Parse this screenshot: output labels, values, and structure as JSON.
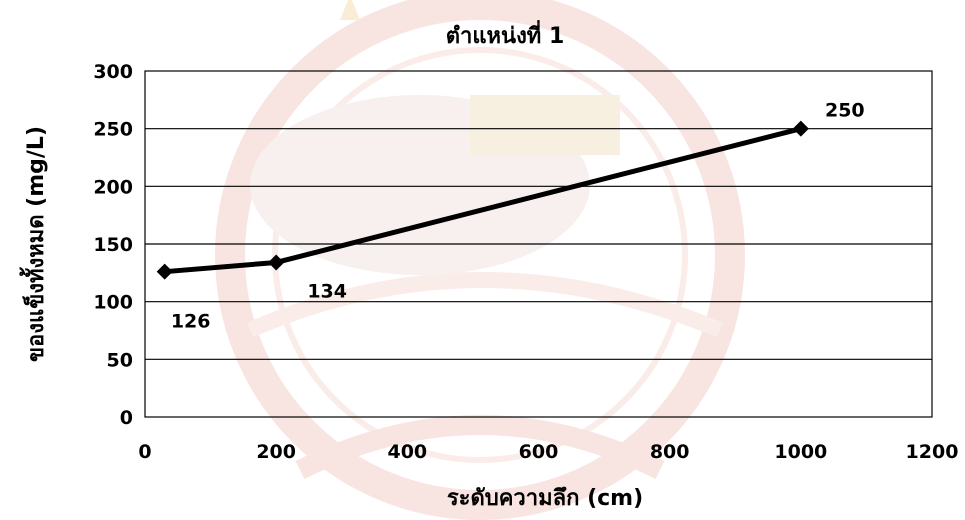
{
  "chart_data": {
    "type": "line",
    "title": "ตำแหน่งที่ 1",
    "xlabel": "ระดับความลึก (cm)",
    "ylabel": "ของแข็งทั้งหมด (mg/L)",
    "xlim": [
      0,
      1200
    ],
    "ylim": [
      0,
      300
    ],
    "xticks": [
      0,
      200,
      400,
      600,
      800,
      1000,
      1200
    ],
    "yticks": [
      0,
      50,
      100,
      150,
      200,
      250,
      300
    ],
    "grid": "horizontal",
    "legend": "none",
    "series": [
      {
        "color": "#000000",
        "marker": "diamond",
        "points": [
          {
            "x": 30,
            "y": 126,
            "label": "126"
          },
          {
            "x": 200,
            "y": 134,
            "label": "134"
          },
          {
            "x": 1000,
            "y": 250,
            "label": "250"
          }
        ]
      }
    ]
  },
  "colors": {
    "watermark": "#e7a9a0",
    "watermark_gold": "#ecd6a2",
    "gridline": "#000000",
    "plot_border": "#000000"
  }
}
